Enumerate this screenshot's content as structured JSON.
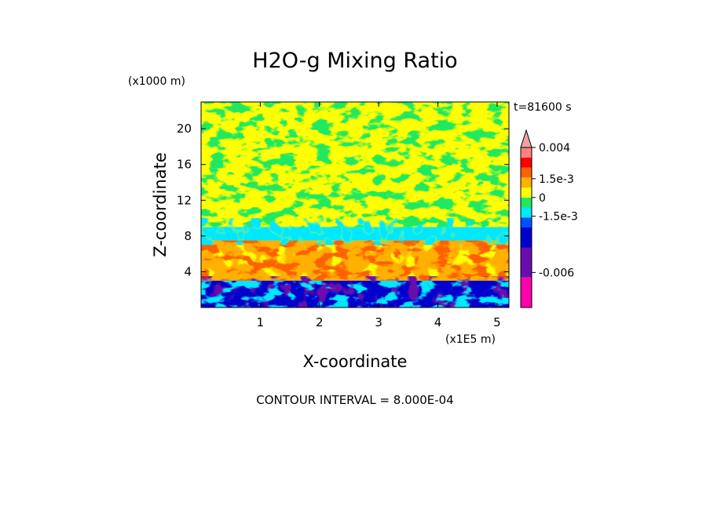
{
  "chart_data": {
    "type": "heatmap",
    "title": "H2O-g Mixing Ratio",
    "xlabel": "X-coordinate",
    "ylabel": "Z-coordinate",
    "x_unit": "(x1E5 m)",
    "y_unit": "(x1000 m)",
    "time_label": "t=81600 s",
    "footer": "CONTOUR INTERVAL = 8.000E-04",
    "xlim": [
      0,
      5.2
    ],
    "ylim": [
      0,
      23
    ],
    "x_ticks": [
      1,
      2,
      3,
      4,
      5
    ],
    "x_tick_labels": [
      "1",
      "2",
      "3",
      "4",
      "5"
    ],
    "y_ticks": [
      4,
      8,
      12,
      16,
      20
    ],
    "y_tick_labels": [
      "4",
      "8",
      "12",
      "16",
      "20"
    ],
    "colorbar": {
      "levels": [
        -0.0088,
        -0.0064,
        -0.004,
        -0.0024,
        -0.0016,
        -0.0008,
        0,
        0.0008,
        0.0016,
        0.0024,
        0.0032,
        0.004
      ],
      "colors": [
        "#ff00aa",
        "#b020b0",
        "#6a0dad",
        "#0000cc",
        "#0050ff",
        "#00e8ff",
        "#22e860",
        "#ffff00",
        "#ffb000",
        "#ff6000",
        "#ff0000",
        "#ff8080",
        "#f4a0a0"
      ],
      "tick_values": [
        0.004,
        0.0015,
        0,
        -0.0015,
        -0.006
      ],
      "tick_labels": [
        "0.004",
        "1.5e-3",
        "0",
        "-1.5e-3",
        "-0.006"
      ],
      "extend": "max"
    },
    "bands": [
      {
        "z_range": [
          21,
          23
        ],
        "dominant_level": "0 to 8e-4",
        "color": "#ffff00"
      },
      {
        "z_range": [
          17,
          21
        ],
        "dominant_level": "0 to 8e-4",
        "color": "#ffff00"
      },
      {
        "z_range": [
          9,
          17
        ],
        "dominant_level": "0 to 8e-4",
        "color": "#ffff00"
      },
      {
        "z_range": [
          7.5,
          9
        ],
        "dominant_level": "-8e-4 to 0",
        "color": "#00e8ff"
      },
      {
        "z_range": [
          3,
          7.5
        ],
        "dominant_level": "8e-4 to 3.2e-3",
        "color": "#ffb000"
      },
      {
        "z_range": [
          0,
          3
        ],
        "dominant_level": "-6.4e-3 to -1.6e-3",
        "color": "#0000cc"
      }
    ]
  }
}
